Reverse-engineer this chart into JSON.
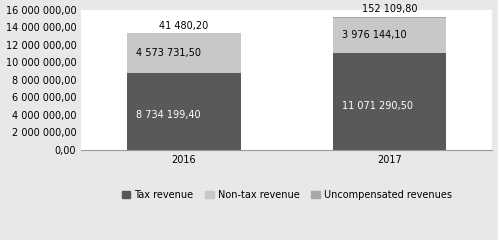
{
  "categories": [
    "2016",
    "2017"
  ],
  "tax_revenue": [
    8734199.4,
    11071290.5
  ],
  "non_tax_revenue": [
    4573731.5,
    3976144.1
  ],
  "uncompensated_revenue": [
    41480.2,
    152109.8
  ],
  "tax_color": "#595959",
  "non_tax_color": "#c8c8c8",
  "uncomp_color": "#a8a8a8",
  "bar_width": 0.55,
  "ylim": [
    0,
    16000000
  ],
  "yticks": [
    0,
    2000000,
    4000000,
    6000000,
    8000000,
    10000000,
    12000000,
    14000000,
    16000000
  ],
  "ytick_labels": [
    "0,00",
    "2 000 000,00",
    "4 000 000,00",
    "6 000 000,00",
    "8 000 000,00",
    "10 000 000,00",
    "12 000 000,00",
    "14 000 000,00",
    "16 000 000,00"
  ],
  "legend_labels": [
    "Tax revenue",
    "Non-tax revenue",
    "Uncompensated revenues"
  ],
  "label_fontsize": 7.0,
  "tick_fontsize": 7.0,
  "legend_fontsize": 7.0,
  "background_color": "#e8e8e8",
  "plot_bg_color": "#ffffff",
  "tax_label_2016": "8 734 199,40",
  "tax_label_2017": "11 071 290,50",
  "nontax_label_2016": "4 573 731,50",
  "nontax_label_2017": "3 976 144,10",
  "uncomp_label_2016": "41 480,20",
  "uncomp_label_2017": "152 109,80"
}
